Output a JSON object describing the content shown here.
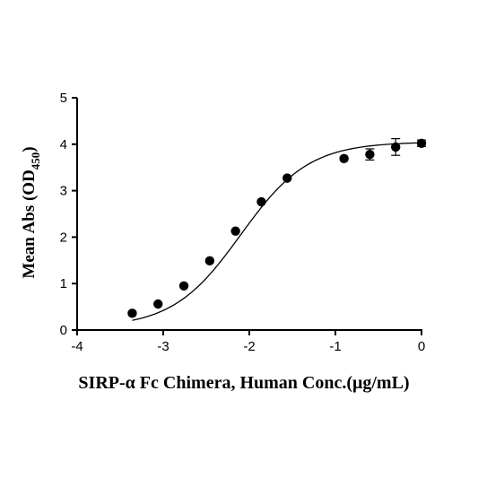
{
  "chart_data": {
    "type": "scatter",
    "xlabel": "SIRP-α Fc Chimera, Human Conc.(μg/mL)",
    "ylabel_main": "Mean Abs (OD",
    "ylabel_sub": "450",
    "ylabel_close": ")",
    "xlim": [
      -4,
      0
    ],
    "ylim": [
      0,
      5
    ],
    "x_ticks": [
      -4,
      -3,
      -2,
      -1,
      0
    ],
    "y_ticks": [
      0,
      1,
      2,
      3,
      4,
      5
    ],
    "x_tick_labels": [
      "-4",
      "-3",
      "-2",
      "-1",
      "0"
    ],
    "y_tick_labels": [
      "0",
      "1",
      "2",
      "3",
      "4",
      "5"
    ],
    "grid": false,
    "points": [
      {
        "x": -3.36,
        "y": 0.36,
        "err": 0
      },
      {
        "x": -3.06,
        "y": 0.56,
        "err": 0
      },
      {
        "x": -2.76,
        "y": 0.95,
        "err": 0
      },
      {
        "x": -2.46,
        "y": 1.49,
        "err": 0
      },
      {
        "x": -2.16,
        "y": 2.13,
        "err": 0
      },
      {
        "x": -1.86,
        "y": 2.76,
        "err": 0
      },
      {
        "x": -1.56,
        "y": 3.27,
        "err": 0
      },
      {
        "x": -0.9,
        "y": 3.69,
        "err": 0
      },
      {
        "x": -0.6,
        "y": 3.78,
        "err": 0.12
      },
      {
        "x": -0.3,
        "y": 3.94,
        "err": 0.18
      },
      {
        "x": 0.0,
        "y": 4.02,
        "err": 0.07
      }
    ],
    "fit_curve": {
      "bottom": 0.05,
      "top": 4.05,
      "logEC50": -2.1,
      "hill": 1.1
    }
  }
}
